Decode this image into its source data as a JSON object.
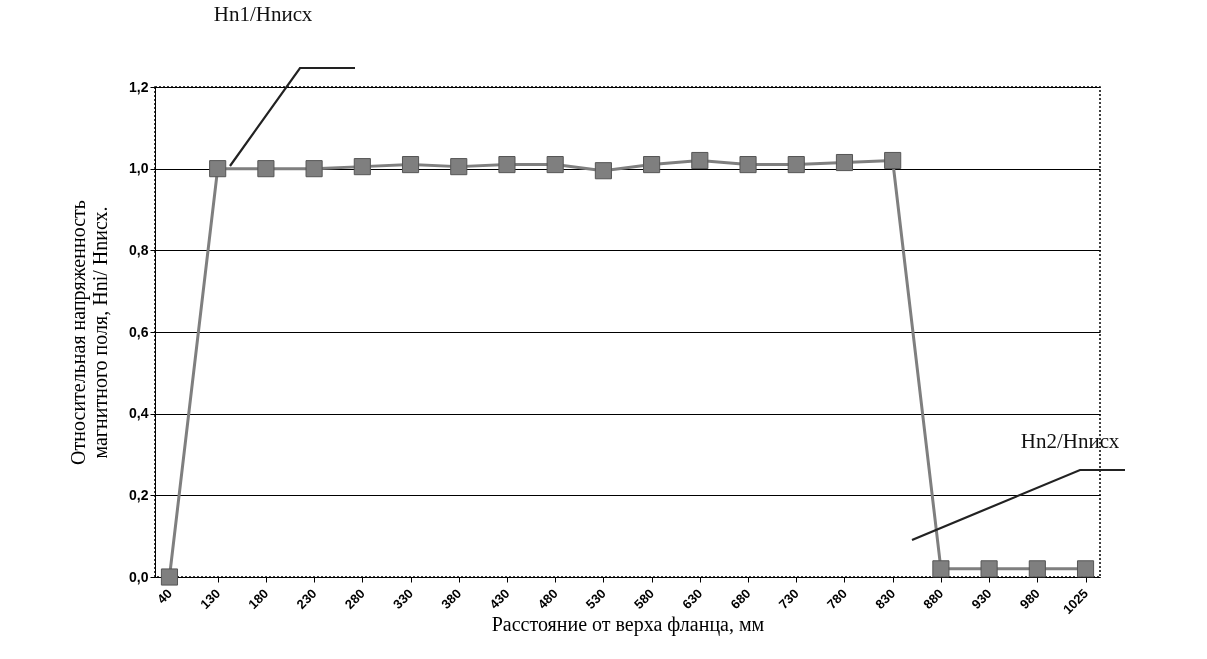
{
  "chart_data": {
    "type": "line",
    "xlabel": "Расстояние от верха фланца, мм",
    "ylabel": "Относительная напряженность магнитного поля, Hni/ Hnисх.",
    "categories": [
      "40",
      "130",
      "180",
      "230",
      "280",
      "330",
      "380",
      "430",
      "480",
      "530",
      "580",
      "630",
      "680",
      "730",
      "780",
      "830",
      "880",
      "930",
      "980",
      "1025"
    ],
    "series": [
      {
        "color": "#7f7f7f",
        "values": [
          0,
          1.0,
          1.0,
          1.0,
          1.005,
          1.01,
          1.005,
          1.01,
          1.01,
          0.995,
          1.01,
          1.02,
          1.01,
          1.01,
          1.015,
          1.02,
          0.02,
          0.02,
          0.02,
          0.02
        ]
      }
    ],
    "ylim": [
      0,
      1.2
    ],
    "yticks": [
      {
        "value": 0,
        "label": "0,0"
      },
      {
        "value": 0.2,
        "label": "0,2"
      },
      {
        "value": 0.4,
        "label": "0,4"
      },
      {
        "value": 0.6,
        "label": "0,6"
      },
      {
        "value": 0.8,
        "label": "0,8"
      },
      {
        "value": 1.0,
        "label": "1,0"
      },
      {
        "value": 1.2,
        "label": "1,2"
      }
    ],
    "grid": "y",
    "marker": "square",
    "line_style": "solid",
    "annotations": [
      "Hn1/Hnисх",
      "Hn2/Hnисх"
    ]
  }
}
